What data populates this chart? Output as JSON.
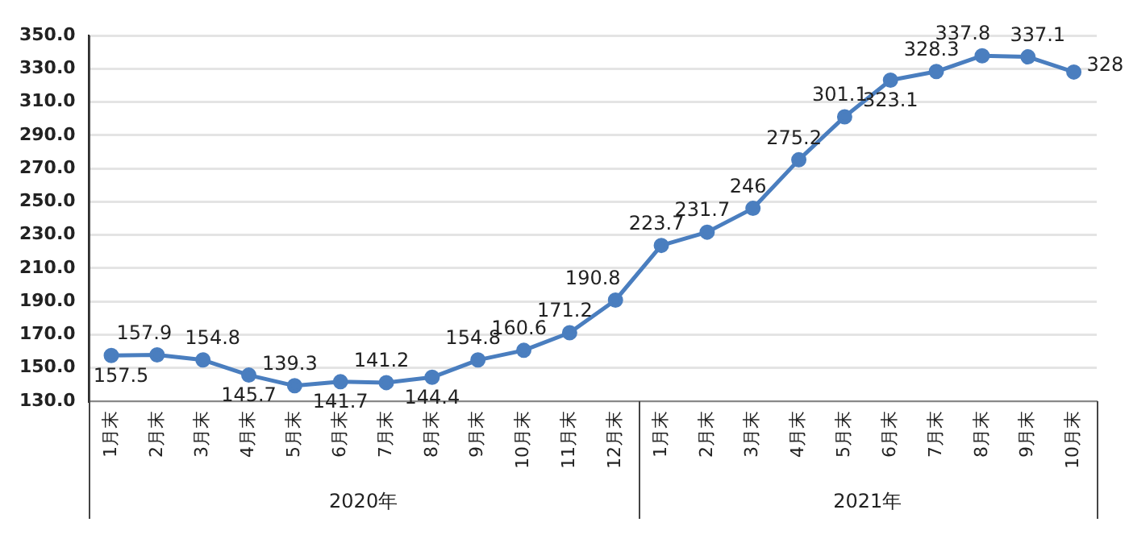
{
  "chart_data": {
    "type": "line",
    "categories": [
      "1月末",
      "2月末",
      "3月末",
      "4月末",
      "5月末",
      "6月末",
      "7月末",
      "8月末",
      "9月末",
      "10月末",
      "11月末",
      "12月末",
      "1月末",
      "2月末",
      "3月末",
      "4月末",
      "5月末",
      "6月末",
      "7月末",
      "8月末",
      "9月末",
      "10月末"
    ],
    "series": [
      {
        "color": "#4a7ebf",
        "values": [
          157.5,
          157.9,
          154.8,
          145.7,
          139.3,
          141.7,
          141.2,
          144.4,
          154.8,
          160.6,
          171.2,
          190.8,
          223.7,
          231.7,
          246,
          275.2,
          301.1,
          323.1,
          328.3,
          337.8,
          337.1,
          328
        ]
      }
    ],
    "ylim": [
      130,
      350
    ],
    "yticks": [
      {
        "value": 130,
        "label": "130.0"
      },
      {
        "value": 150,
        "label": "150.0"
      },
      {
        "value": 170,
        "label": "170.0"
      },
      {
        "value": 190,
        "label": "190.0"
      },
      {
        "value": 210,
        "label": "210.0"
      },
      {
        "value": 230,
        "label": "230.0"
      },
      {
        "value": 250,
        "label": "250.0"
      },
      {
        "value": 270,
        "label": "270.0"
      },
      {
        "value": 290,
        "label": "290.0"
      },
      {
        "value": 310,
        "label": "310.0"
      },
      {
        "value": 330,
        "label": "330.0"
      },
      {
        "value": 350,
        "label": "350.0"
      }
    ],
    "annotations": [
      "2020年",
      "2021年"
    ],
    "grid": "y",
    "legend": false,
    "marker": "circle",
    "line_style": "solid",
    "data_labels": true
  }
}
